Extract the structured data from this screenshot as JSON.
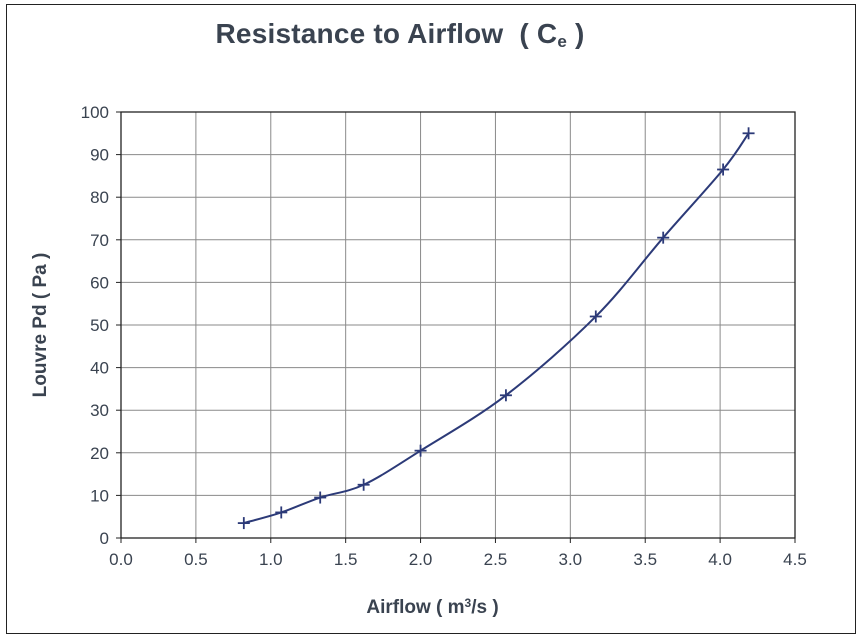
{
  "chart_data": {
    "type": "line",
    "title": "Resistance to Airflow",
    "title_symbol": "C",
    "title_subscript": "e",
    "ylabel": "Louvre Pd  ( Pa )",
    "xlabel_prefix": "Airflow  ( m",
    "xlabel_sup": "3",
    "xlabel_suffix": "/s )",
    "xlim": [
      0,
      4.5
    ],
    "ylim": [
      0,
      100
    ],
    "xticks": [
      "0.0",
      "0.5",
      "1.0",
      "1.5",
      "2.0",
      "2.5",
      "3.0",
      "3.5",
      "4.0",
      "4.5"
    ],
    "yticks": [
      "0",
      "10",
      "20",
      "30",
      "40",
      "50",
      "60",
      "70",
      "80",
      "90",
      "100"
    ],
    "grid": true,
    "marker": "+",
    "line_color": "#2c3a78",
    "x": [
      0.82,
      1.07,
      1.33,
      1.62,
      2.0,
      2.57,
      3.17,
      3.62,
      4.02,
      4.19
    ],
    "y": [
      3.5,
      6.0,
      9.5,
      12.5,
      20.5,
      33.5,
      52.0,
      70.5,
      86.5,
      95.0
    ]
  }
}
